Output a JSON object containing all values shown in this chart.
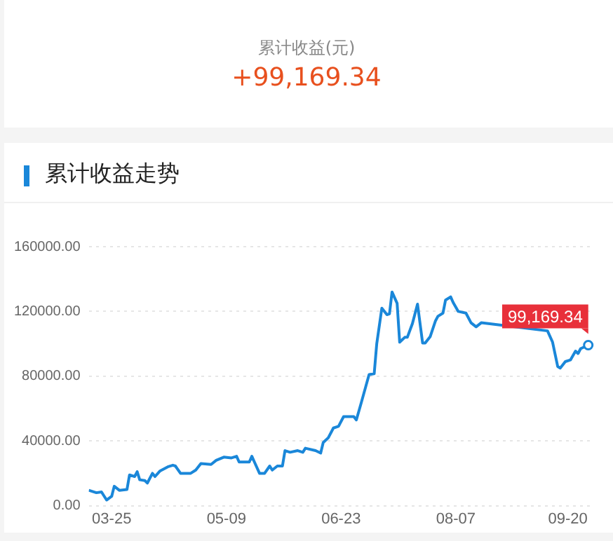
{
  "chart_data": {
    "type": "line",
    "title": "累计收益走势",
    "annotations": [
      "累计收益(元)",
      "+99,169.34",
      {
        "text": "99,169.34",
        "x": "--09-28",
        "y": 99169.34
      }
    ],
    "x": [
      "--03-16",
      "--03-19",
      "--03-21",
      "--03-23",
      "--03-25",
      "--03-26",
      "--03-28",
      "--03-31",
      "--04-01",
      "--04-03",
      "--04-04",
      "--04-05",
      "--04-07",
      "--04-08",
      "--04-10",
      "--04-11",
      "--04-13",
      "--04-16",
      "--04-18",
      "--04-19",
      "--04-21",
      "--04-25",
      "--04-27",
      "--04-29",
      "--05-03",
      "--05-05",
      "--05-08",
      "--05-11",
      "--05-13",
      "--05-14",
      "--05-18",
      "--05-19",
      "--05-20",
      "--05-22",
      "--05-24",
      "--05-26",
      "--05-27",
      "--05-29",
      "--05-31",
      "--06-01",
      "--06-03",
      "--06-06",
      "--06-08",
      "--06-09",
      "--06-13",
      "--06-15",
      "--06-16",
      "--06-18",
      "--06-20",
      "--06-22",
      "--06-24",
      "--06-28",
      "--06-29",
      "--07-01",
      "--07-04",
      "--07-06",
      "--07-07",
      "--07-09",
      "--07-11",
      "--07-12",
      "--07-13",
      "--07-15",
      "--07-16",
      "--07-18",
      "--07-19",
      "--07-21",
      "--07-23",
      "--07-25",
      "--07-26",
      "--07-28",
      "--07-30",
      "--07-31",
      "--08-02",
      "--08-03",
      "--08-05",
      "--08-06",
      "--08-08",
      "--08-11",
      "--08-13",
      "--08-15",
      "--08-17",
      "--09-12",
      "--09-14",
      "--09-16",
      "--09-17",
      "--09-19",
      "--09-21",
      "--09-23",
      "--09-24",
      "--09-25",
      "--09-28"
    ],
    "series": [
      {
        "color": "#1a87d9",
        "values": [
          9500,
          8000,
          8500,
          3500,
          5800,
          12000,
          9500,
          10000,
          19000,
          18000,
          21000,
          16000,
          15500,
          14000,
          20000,
          18000,
          21500,
          24000,
          25000,
          24500,
          20000,
          20000,
          22000,
          26000,
          25500,
          28000,
          30000,
          29500,
          30500,
          27000,
          27000,
          30500,
          27000,
          20000,
          20000,
          24500,
          22000,
          24500,
          24500,
          34000,
          33000,
          34000,
          33000,
          35500,
          34000,
          32500,
          39000,
          42000,
          48000,
          49000,
          55000,
          55000,
          53000,
          64000,
          81000,
          81500,
          100000,
          122000,
          118000,
          118500,
          132000,
          125000,
          101000,
          104000,
          104000,
          112500,
          124500,
          100500,
          100500,
          104500,
          114000,
          117000,
          119000,
          127000,
          129000,
          125500,
          120000,
          119000,
          113000,
          110500,
          113000,
          108000,
          101000,
          86000,
          85000,
          89000,
          90000,
          95500,
          94000,
          97000,
          99169.34
        ]
      }
    ],
    "xlim": [
      "--03-16",
      "--09-30"
    ],
    "xticks": [
      {
        "value": "--03-25",
        "label": "03-25"
      },
      {
        "value": "--05-09",
        "label": "05-09"
      },
      {
        "value": "--06-23",
        "label": "06-23"
      },
      {
        "value": "--08-07",
        "label": "08-07"
      },
      {
        "value": "--09-20",
        "label": "09-20"
      }
    ],
    "ylim": [
      0,
      160000
    ],
    "yticks": [
      {
        "value": 0,
        "label": "0.00"
      },
      {
        "value": 40000,
        "label": "40000.00"
      },
      {
        "value": 80000,
        "label": "80000.00"
      },
      {
        "value": 120000,
        "label": "120000.00"
      },
      {
        "value": 160000,
        "label": "160000.00"
      }
    ],
    "grid": "y",
    "legend": false,
    "marker": "none",
    "line_style": "solid"
  }
}
